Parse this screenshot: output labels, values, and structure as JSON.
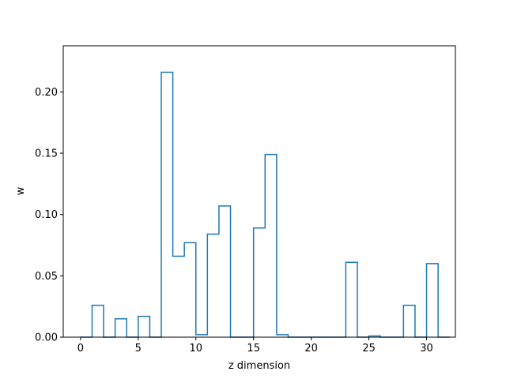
{
  "chart_data": {
    "type": "step",
    "title": "",
    "xlabel": "z dimension",
    "ylabel": "w",
    "xlim": [
      -1.5,
      32.5
    ],
    "ylim": [
      0,
      0.2376
    ],
    "x_ticks": [
      0,
      5,
      10,
      15,
      20,
      25,
      30
    ],
    "x_tick_labels": [
      "0",
      "5",
      "10",
      "15",
      "20",
      "25",
      "30"
    ],
    "y_ticks": [
      0,
      0.05,
      0.1,
      0.15,
      0.2
    ],
    "y_tick_labels": [
      "0.00",
      "0.05",
      "0.10",
      "0.15",
      "0.20"
    ],
    "grid": false,
    "legend": "none",
    "line_color": "#1f77b4",
    "x_start": 0,
    "x_end": 31,
    "bin_width": 1,
    "values": [
      0,
      0.026,
      0,
      0.015,
      0,
      0.017,
      0,
      0.216,
      0.066,
      0.077,
      0.002,
      0.084,
      0.107,
      0,
      0,
      0.089,
      0.149,
      0.002,
      0,
      0,
      0,
      0,
      0,
      0.061,
      0,
      0.001,
      0,
      0,
      0.026,
      0,
      0.06,
      0
    ]
  }
}
